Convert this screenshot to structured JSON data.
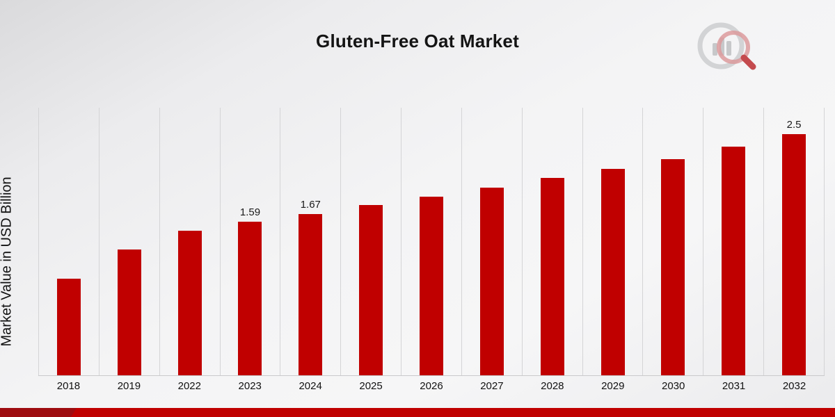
{
  "title": "Gluten-Free Oat Market",
  "y_axis_title": "Market Value in USD Billion",
  "logo": {
    "name": "market-research-brand-logo"
  },
  "colors": {
    "bar": "#c00000",
    "footer_main": "#c00000",
    "footer_cap": "#9e0c10",
    "gridline": "#d4d4d6"
  },
  "chart_data": {
    "type": "bar",
    "title": "Gluten-Free Oat Market",
    "xlabel": "",
    "ylabel": "Market Value in USD Billion",
    "categories": [
      "2018",
      "2019",
      "2022",
      "2023",
      "2024",
      "2025",
      "2026",
      "2027",
      "2028",
      "2029",
      "2030",
      "2031",
      "2032"
    ],
    "values": [
      1.0,
      1.3,
      1.5,
      1.59,
      1.67,
      1.76,
      1.85,
      1.94,
      2.04,
      2.14,
      2.24,
      2.37,
      2.5
    ],
    "bar_labels": {
      "2023": "1.59",
      "2024": "1.67",
      "2032": "2.5"
    },
    "ylim": [
      0,
      2.77
    ],
    "grid": "vertical-only",
    "legend": "none",
    "bar_color": "#c00000"
  }
}
